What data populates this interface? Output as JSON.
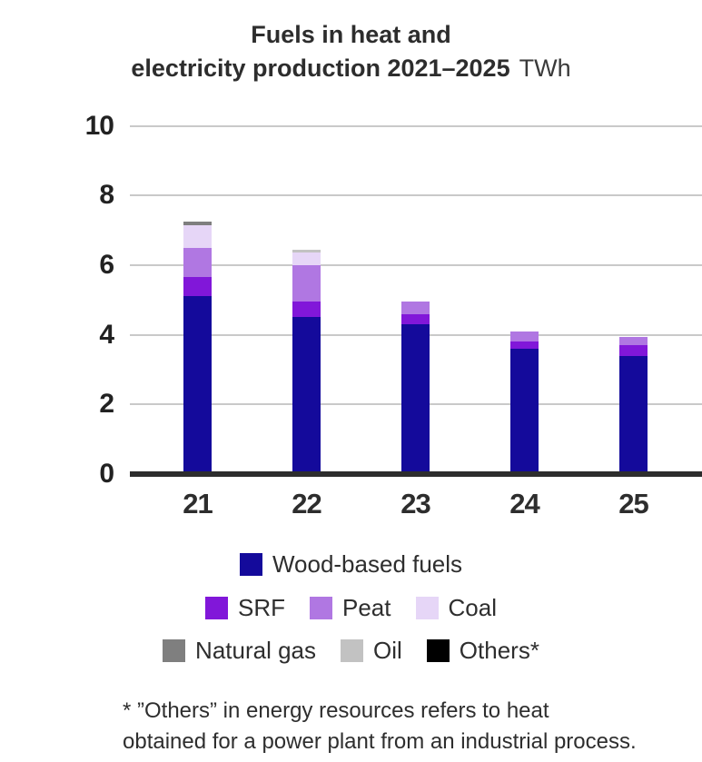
{
  "title": {
    "line1": "Fuels in heat and",
    "line2": "electricity production 2021–2025",
    "unit": "TWh"
  },
  "chart_data": {
    "type": "bar",
    "stacked": true,
    "title": "Fuels in heat and electricity production 2021–2025",
    "unit": "TWh",
    "categories": [
      "21",
      "22",
      "23",
      "24",
      "25"
    ],
    "series": [
      {
        "name": "Wood-based fuels",
        "color": "#140a9b",
        "values": [
          5.1,
          4.5,
          4.3,
          3.6,
          3.4
        ]
      },
      {
        "name": "SRF",
        "color": "#8117d9",
        "values": [
          0.55,
          0.45,
          0.3,
          0.2,
          0.3
        ]
      },
      {
        "name": "Peat",
        "color": "#b077e2",
        "values": [
          0.85,
          1.05,
          0.35,
          0.3,
          0.25
        ]
      },
      {
        "name": "Coal",
        "color": "#e6d6f7",
        "values": [
          0.65,
          0.35,
          0,
          0,
          0
        ]
      },
      {
        "name": "Natural gas",
        "color": "#7f7f7f",
        "values": [
          0.1,
          0,
          0,
          0,
          0
        ]
      },
      {
        "name": "Oil",
        "color": "#c2c2c2",
        "values": [
          0,
          0.1,
          0,
          0,
          0
        ]
      },
      {
        "name": "Others*",
        "color": "#000000",
        "values": [
          0,
          0,
          0,
          0,
          0
        ]
      }
    ],
    "totals": [
      7.25,
      6.45,
      4.95,
      4.1,
      3.95
    ],
    "ylim": [
      0,
      10
    ],
    "yticks": [
      0,
      2,
      4,
      6,
      8,
      10
    ],
    "grid": true,
    "legend_position": "bottom",
    "axis_color": "#2d2d2d",
    "gridline_color": "#c9c9c9"
  },
  "legend": {
    "rows": [
      [
        0
      ],
      [
        1,
        2,
        3
      ],
      [
        4,
        5,
        6
      ]
    ]
  },
  "footnote": {
    "line1": "* ”Others” in energy resources refers to heat",
    "line2": "obtained for a power plant from an industrial process."
  }
}
